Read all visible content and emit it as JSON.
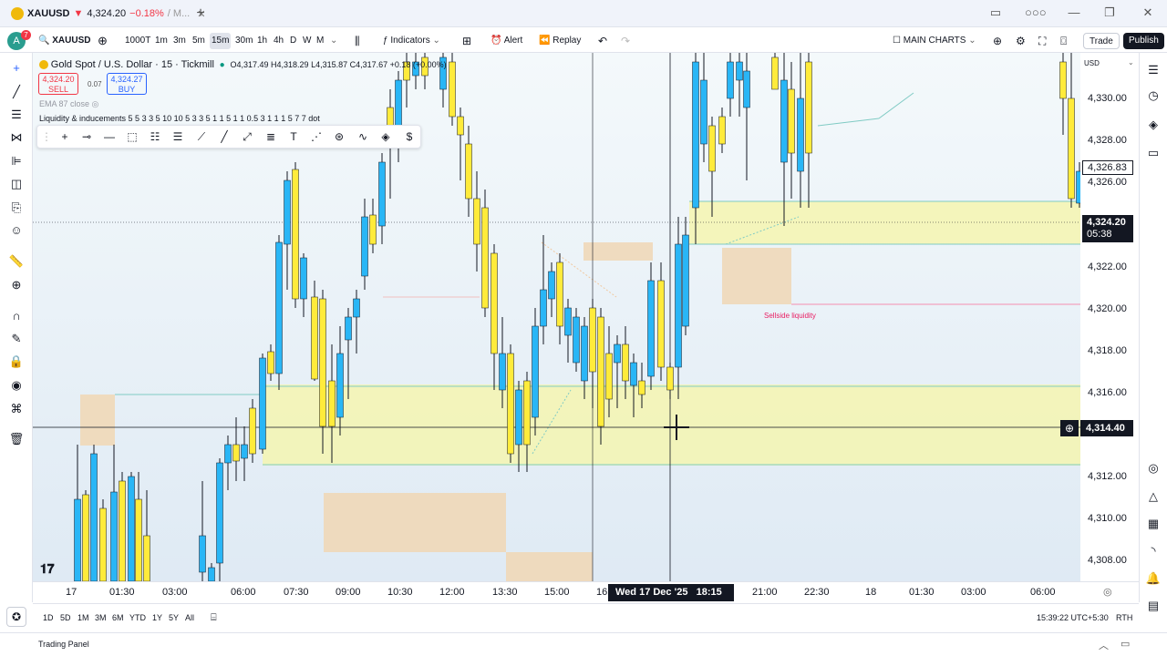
{
  "titlebar": {
    "symbol": "XAUUSD",
    "price": "4,324.20",
    "arrow": "▼",
    "change": "−0.18%",
    "extra": "/ M...",
    "new_tab": "+",
    "window_controls": [
      "▭",
      "○○○",
      "—",
      "❐",
      "✕"
    ]
  },
  "toolbar": {
    "avatar_letter": "A",
    "notif_count": "7",
    "symbol": "XAUUSD",
    "add_symbol": "⊕",
    "intervals": [
      "1000T",
      "1m",
      "3m",
      "5m",
      "15m",
      "30m",
      "1h",
      "4h",
      "D",
      "W",
      "M"
    ],
    "active_interval": "15m",
    "indicators": "Indicators",
    "alert": "Alert",
    "replay": "Replay",
    "layout_name": "MAIN CHARTS",
    "trade": "Trade",
    "publish": "Publish"
  },
  "legend": {
    "title": "Gold Spot / U.S. Dollar · 15 · Tickmill",
    "ohlc": "O4,317.49 H4,318.29 L4,315.87 C4,317.67 +0.18 (+0.00%)",
    "sell_price": "4,324.20",
    "sell_label": "SELL",
    "spread": "0.07",
    "buy_price": "4,324.27",
    "buy_label": "BUY",
    "ema": "EMA 87 close",
    "indicator": "Liquidity & inducements 5 5 3 3 5 10 10 5 3 3 5 1 1 5 1 1 0.5 3 1 1 1 5 7 7 dot"
  },
  "chart_labels": {
    "sellside": "Sellside liquidity"
  },
  "price_axis": {
    "currency": "USD",
    "ticks": [
      "4,330.00",
      "4,328.00",
      "4,326.00",
      "4,322.00",
      "4,320.00",
      "4,318.00",
      "4,316.00",
      "4,312.00",
      "4,310.00",
      "4,308.00"
    ],
    "last_price": "4,324.20",
    "countdown": "05:38",
    "crosshair_price": "4,314.40",
    "marker_price": "4,326.83"
  },
  "time_axis": {
    "ticks": [
      "17",
      "01:30",
      "03:00",
      "06:00",
      "07:30",
      "09:00",
      "10:30",
      "12:00",
      "13:30",
      "15:00",
      "16",
      "21:00",
      "22:30",
      "18",
      "01:30",
      "03:00",
      "06:00"
    ],
    "crosshair_date": "Wed 17 Dec '25",
    "crosshair_time": "18:15"
  },
  "bottom": {
    "ranges": [
      "1D",
      "5D",
      "1M",
      "3M",
      "6M",
      "YTD",
      "1Y",
      "5Y",
      "All"
    ],
    "clock": "15:39:22 UTC+5:30",
    "session": "RTH",
    "panel": "Trading Panel"
  },
  "colors": {
    "bull": "#29b6f6",
    "bear": "#ffeb3b",
    "zone_yellow": "#f4f4b0",
    "zone_peach": "#f0d8b8",
    "accent": "#2962ff"
  }
}
